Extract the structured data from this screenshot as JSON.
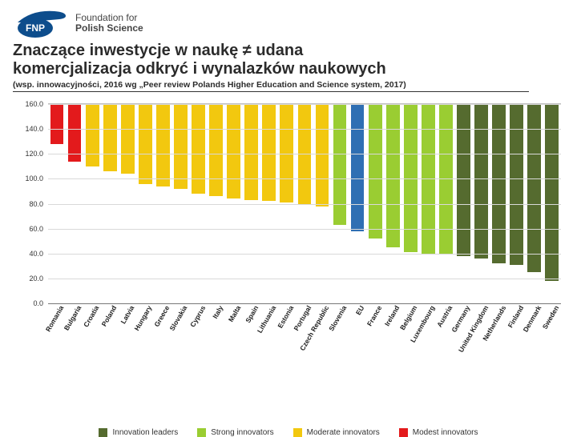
{
  "logo": {
    "abbr": "FNP",
    "line1": "Foundation for",
    "line2": "Polish Science",
    "oval_fill": "#0d4d8c",
    "swoosh_fill": "#0d4d8c",
    "abbr_color": "#ffffff"
  },
  "title": {
    "line1": "Znaczące inwestycje w naukę ≠ udana",
    "line2": "komercjalizacja odkryć i wynalazków naukowych",
    "subtitle": "(wsp. innowacyjności, 2016 wg „Peer review Polands Higher Education and Science system, 2017)"
  },
  "chart": {
    "type": "bar",
    "ylim": [
      0,
      160
    ],
    "ytick_step": 20,
    "yticks": [
      "0.0",
      "20.0",
      "40.0",
      "60.0",
      "80.0",
      "100.0",
      "120.0",
      "140.0",
      "160.0"
    ],
    "grid_color": "#d9d9d9",
    "baseline_color": "#777777",
    "background_color": "#ffffff",
    "label_fontsize": 8.5,
    "colors": {
      "leaders": "#556b2f",
      "strong": "#9acd32",
      "moderate": "#f2c80f",
      "modest": "#e31a1c",
      "eu": "#2f6fb3"
    },
    "categories": [
      {
        "label": "Romania",
        "value": 32,
        "group": "modest"
      },
      {
        "label": "Bulgaria",
        "value": 46,
        "group": "modest"
      },
      {
        "label": "Croatia",
        "value": 50,
        "group": "moderate"
      },
      {
        "label": "Poland",
        "value": 54,
        "group": "moderate"
      },
      {
        "label": "Latvia",
        "value": 56,
        "group": "moderate"
      },
      {
        "label": "Hungary",
        "value": 64,
        "group": "moderate"
      },
      {
        "label": "Greece",
        "value": 66,
        "group": "moderate"
      },
      {
        "label": "Slovakia",
        "value": 68,
        "group": "moderate"
      },
      {
        "label": "Cyprus",
        "value": 72,
        "group": "moderate"
      },
      {
        "label": "Italy",
        "value": 74,
        "group": "moderate"
      },
      {
        "label": "Malta",
        "value": 76,
        "group": "moderate"
      },
      {
        "label": "Spain",
        "value": 77,
        "group": "moderate"
      },
      {
        "label": "Lithuania",
        "value": 78,
        "group": "moderate"
      },
      {
        "label": "Estonia",
        "value": 79,
        "group": "moderate"
      },
      {
        "label": "Portugal",
        "value": 80,
        "group": "moderate"
      },
      {
        "label": "Czech Republic",
        "value": 82,
        "group": "moderate"
      },
      {
        "label": "Slovenia",
        "value": 97,
        "group": "strong"
      },
      {
        "label": "EU",
        "value": 102,
        "group": "eu"
      },
      {
        "label": "France",
        "value": 108,
        "group": "strong"
      },
      {
        "label": "Ireland",
        "value": 115,
        "group": "strong"
      },
      {
        "label": "Belgium",
        "value": 119,
        "group": "strong"
      },
      {
        "label": "Luxembourg",
        "value": 120,
        "group": "strong"
      },
      {
        "label": "Austria",
        "value": 120,
        "group": "strong"
      },
      {
        "label": "Germany",
        "value": 122,
        "group": "leaders"
      },
      {
        "label": "United Kingdom",
        "value": 124,
        "group": "leaders"
      },
      {
        "label": "Netherlands",
        "value": 128,
        "group": "leaders"
      },
      {
        "label": "Finland",
        "value": 129,
        "group": "leaders"
      },
      {
        "label": "Denmark",
        "value": 135,
        "group": "leaders"
      },
      {
        "label": "Sweden",
        "value": 142,
        "group": "leaders"
      }
    ],
    "legend": [
      {
        "label": "Innovation leaders",
        "group": "leaders"
      },
      {
        "label": "Strong innovators",
        "group": "strong"
      },
      {
        "label": "Moderate innovators",
        "group": "moderate"
      },
      {
        "label": "Modest innovators",
        "group": "modest"
      }
    ]
  }
}
